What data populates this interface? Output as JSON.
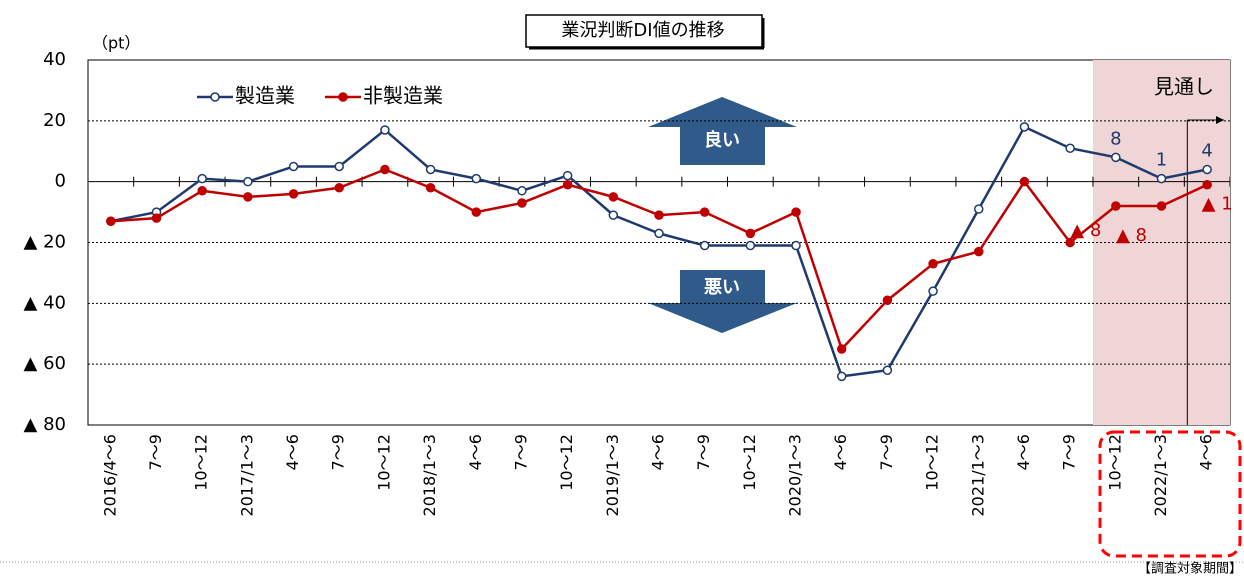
{
  "chart_data": {
    "type": "line",
    "title": "業況判断DI値の推移",
    "y_unit": "（pt）",
    "categories": [
      "2016/4～6",
      "7～9",
      "10～12",
      "2017/1～3",
      "4～6",
      "7～9",
      "10～12",
      "2018/1～3",
      "4～6",
      "7～9",
      "10～12",
      "2019/1～3",
      "4～6",
      "7～9",
      "10～12",
      "2020/1～3",
      "4～6",
      "7～9",
      "10～12",
      "2021/1～3",
      "4～6",
      "7～9",
      "10～12",
      "2022/1～3",
      "4～6"
    ],
    "series": [
      {
        "name": "製造業",
        "color": "#1f3a6e",
        "values": [
          -13,
          -10,
          1,
          0,
          5,
          5,
          17,
          4,
          1,
          -3,
          2,
          -11,
          -17,
          -21,
          -21,
          -21,
          -64,
          -62,
          -36,
          -9,
          18,
          11,
          8,
          1,
          4
        ],
        "value_labels": [
          null,
          null,
          null,
          null,
          null,
          null,
          null,
          null,
          null,
          null,
          null,
          null,
          null,
          null,
          null,
          null,
          null,
          null,
          null,
          null,
          null,
          null,
          "8",
          "1",
          "4"
        ]
      },
      {
        "name": "非製造業",
        "color": "#c00000",
        "values": [
          -13,
          -12,
          -3,
          -5,
          -4,
          -2,
          4,
          -2,
          -10,
          -7,
          -1,
          -5,
          -11,
          -10,
          -17,
          -10,
          -55,
          -39,
          -27,
          -23,
          0,
          -20,
          -8,
          -8,
          -1
        ],
        "value_labels": [
          null,
          null,
          null,
          null,
          null,
          null,
          null,
          null,
          null,
          null,
          null,
          null,
          null,
          null,
          null,
          null,
          null,
          null,
          null,
          null,
          null,
          null,
          "▲ 8",
          "▲ 8",
          "▲ 1"
        ]
      }
    ],
    "ylim": [
      -80,
      40
    ],
    "yticks": [
      40,
      20,
      0,
      {
        "value": -20,
        "label": "▲ 20"
      },
      {
        "value": -40,
        "label": "▲ 40"
      },
      {
        "value": -60,
        "label": "▲ 60"
      },
      {
        "value": -80,
        "label": "▲ 80"
      }
    ],
    "grid": true,
    "annotations": {
      "good": "良い",
      "bad": "悪い",
      "outlook": "見通し",
      "survey_period": "【調査対象期間】"
    }
  }
}
